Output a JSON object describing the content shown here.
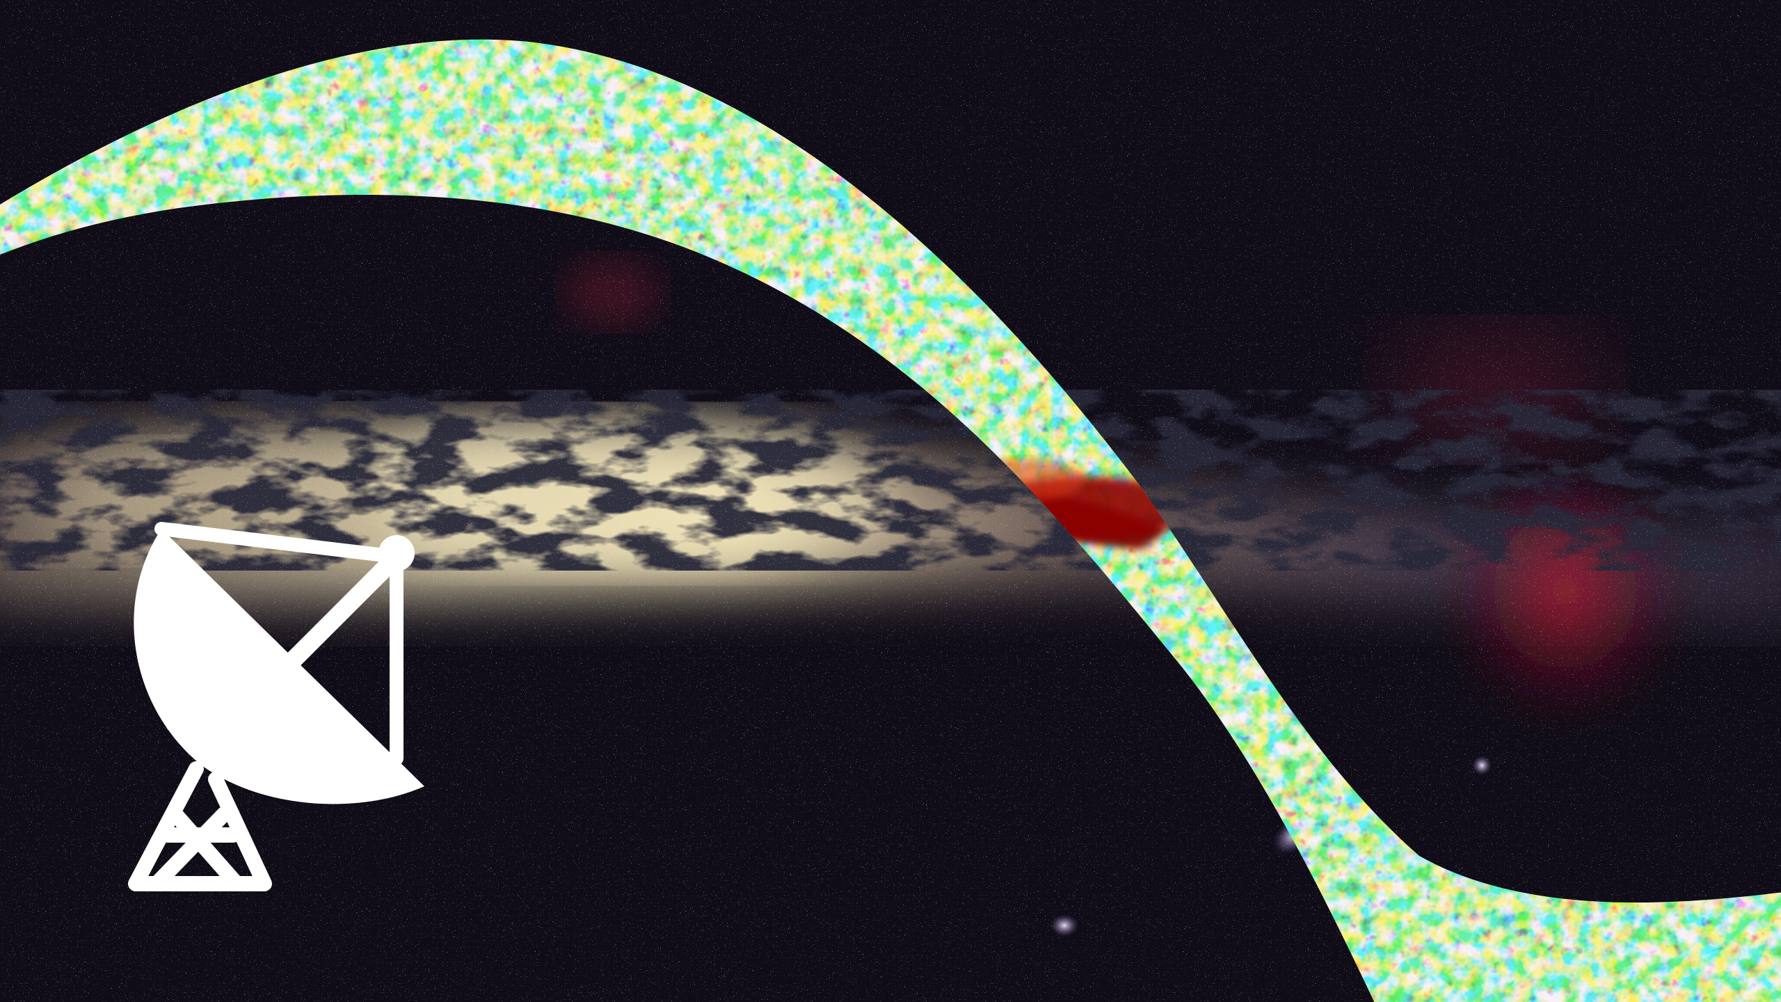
{
  "scene": {
    "description_free": true,
    "colors": {
      "sky_background": "#0b0912",
      "milky_way_core": "#f3e6b8",
      "milky_way_glow": "#c9a27a",
      "dust_lanes": "#07050a",
      "nebula_red": "#a0182c",
      "band_cold": "#1b3cd6",
      "band_mid": "#23c6e6",
      "band_warm": "#e8e23a",
      "band_hot": "#e23a12",
      "band_peak": "#7a0000",
      "icon_color": "#ffffff"
    },
    "icons": {
      "dish": "radio-telescope-icon"
    }
  }
}
